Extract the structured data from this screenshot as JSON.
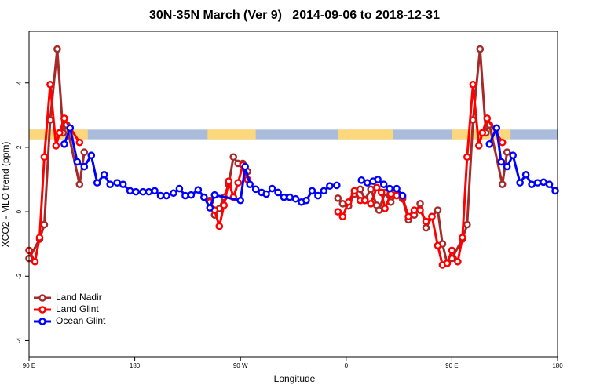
{
  "chart_data": {
    "type": "line",
    "title": "30N-35N March (Ver 9)   2014-09-06 to 2018-12-31",
    "xlabel": "Longitude",
    "ylabel": "XCO2 - MLO trend (ppm)",
    "xlim": [
      90,
      540
    ],
    "ylim": [
      -4.5,
      5.6
    ],
    "xticks": [
      {
        "value": 90,
        "label": "90 E"
      },
      {
        "value": 180,
        "label": "180"
      },
      {
        "value": 270,
        "label": "90 W"
      },
      {
        "value": 360,
        "label": "0"
      },
      {
        "value": 450,
        "label": "90 E"
      },
      {
        "value": 540,
        "label": "180"
      }
    ],
    "yticks": [
      -4,
      -2,
      0,
      2,
      4
    ],
    "legend": "bottom-left",
    "mask": {
      "y": [
        2.25,
        2.55
      ],
      "ocean_color": "#a9bcdb",
      "land_color": "#fdd77c",
      "land": [
        [
          90,
          140
        ],
        [
          242,
          283
        ],
        [
          353,
          400
        ],
        [
          450,
          500
        ]
      ]
    },
    "series": [
      {
        "name": "Land Nadir",
        "color": "#a52a2a",
        "x": [
          90,
          99,
          103,
          108,
          114,
          119,
          122,
          133,
          137,
          190,
          244,
          248,
          252,
          256,
          260,
          264,
          268,
          272,
          276,
          310,
          353,
          357,
          362,
          367,
          372,
          376,
          381,
          386,
          388,
          393,
          398,
          403,
          408,
          413,
          418,
          423,
          428,
          433,
          438,
          442,
          446,
          450,
          459,
          463,
          468,
          474,
          479,
          482,
          493,
          497
        ],
        "values": [
          -1.45,
          -0.85,
          -0.4,
          2.85,
          5.05,
          2.45,
          2.7,
          0.85,
          1.85,
          null,
          0.35,
          -0.1,
          0.1,
          0.45,
          0.85,
          1.7,
          1.5,
          1.5,
          1.25,
          null,
          0.42,
          0.25,
          0.18,
          0.55,
          0.7,
          0.38,
          0.7,
          0.2,
          0.05,
          0.6,
          0.3,
          0.55,
          0.4,
          -0.25,
          -0.1,
          0.25,
          -0.5,
          -0.15,
          0.05,
          -1.0,
          -1.6,
          -1.45,
          -0.85,
          -0.4,
          2.85,
          5.05,
          2.45,
          2.7,
          0.85,
          1.85
        ]
      },
      {
        "name": "Land Glint",
        "color": "#ff0000",
        "x": [
          90,
          95,
          99,
          103,
          108,
          113,
          116,
          120,
          133,
          190,
          244,
          248,
          252,
          256,
          260,
          264,
          268,
          272,
          276,
          310,
          353,
          357,
          362,
          367,
          372,
          376,
          381,
          386,
          390,
          393,
          398,
          403,
          408,
          413,
          418,
          423,
          428,
          433,
          438,
          442,
          446,
          450,
          455,
          459,
          463,
          468,
          473,
          476,
          480,
          493
        ],
        "values": [
          -1.2,
          -1.55,
          -0.8,
          1.7,
          3.95,
          2.05,
          2.45,
          2.9,
          2.15,
          null,
          0.3,
          0.05,
          -0.45,
          0.2,
          0.95,
          0.45,
          0.9,
          1.45,
          1.0,
          null,
          0.0,
          -0.15,
          0.3,
          0.65,
          0.35,
          0.35,
          0.25,
          0.75,
          0.6,
          0.1,
          0.55,
          0.5,
          0.45,
          -0.15,
          0.05,
          0.05,
          -0.3,
          -0.15,
          -1.05,
          -1.65,
          -1.6,
          -1.2,
          -1.55,
          -0.8,
          1.7,
          3.95,
          2.05,
          2.45,
          2.9,
          2.15
        ]
      },
      {
        "name": "Ocean Glint",
        "color": "#0000ff",
        "x": [
          120,
          125,
          131,
          137,
          143,
          148,
          154,
          159,
          165,
          170,
          176,
          181,
          187,
          192,
          197,
          202,
          207,
          213,
          218,
          223,
          228,
          234,
          239,
          244,
          248,
          270,
          274,
          278,
          283,
          288,
          292,
          297,
          302,
          307,
          312,
          317,
          322,
          326,
          331,
          336,
          341,
          346,
          352,
          360,
          373,
          378,
          383,
          387,
          392,
          397,
          403,
          408,
          440,
          482,
          488,
          492,
          497,
          502,
          508,
          513,
          518,
          523,
          528,
          533,
          538
        ],
        "values": [
          2.1,
          2.6,
          1.55,
          1.4,
          1.75,
          0.9,
          1.15,
          0.85,
          0.9,
          0.85,
          0.65,
          0.62,
          0.62,
          0.62,
          0.65,
          0.5,
          0.5,
          0.58,
          0.72,
          0.5,
          0.52,
          0.68,
          0.45,
          0.12,
          0.52,
          0.35,
          1.4,
          0.85,
          0.7,
          0.6,
          0.55,
          0.72,
          0.6,
          0.45,
          0.45,
          0.4,
          0.3,
          0.35,
          0.65,
          0.5,
          0.65,
          0.8,
          0.82,
          null,
          0.98,
          0.9,
          0.95,
          1.0,
          0.85,
          0.72,
          0.72,
          0.5,
          null,
          2.1,
          2.6,
          1.55,
          1.4,
          1.75,
          0.9,
          1.15,
          0.85,
          0.9,
          0.92,
          0.85,
          0.65
        ]
      }
    ]
  }
}
